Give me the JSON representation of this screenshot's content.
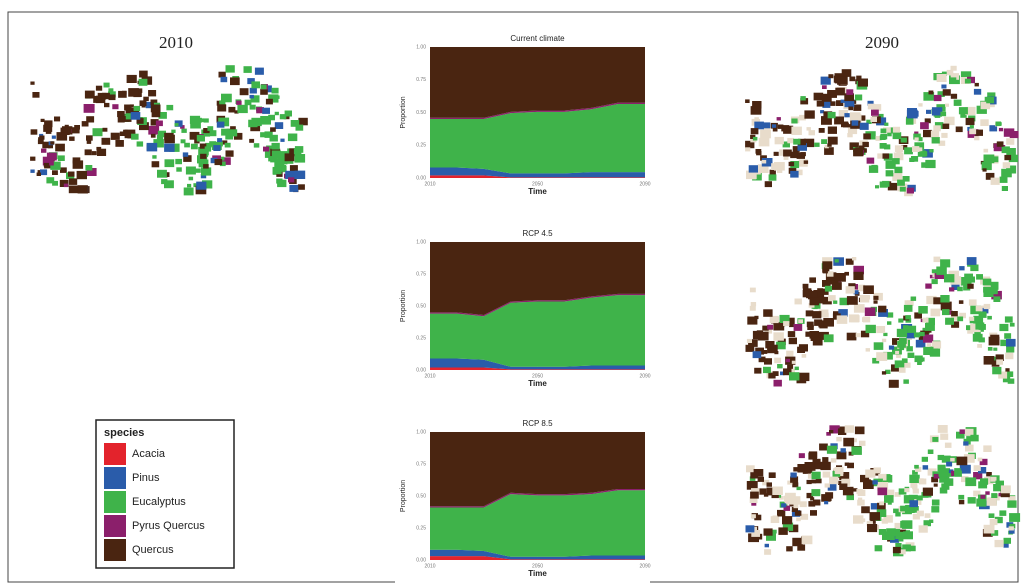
{
  "map_titles": {
    "left": "2010",
    "right": "2090"
  },
  "chart_data": [
    {
      "type": "area",
      "title": "Current climate",
      "x_label": "Time",
      "y_label": "Proportion",
      "legend_title": "species",
      "x": [
        2010,
        2020,
        2030,
        2040,
        2050,
        2060,
        2070,
        2080,
        2090
      ],
      "xlim": [
        2010,
        2090
      ],
      "xticks": [
        2010,
        2050,
        2090
      ],
      "ylim": [
        0,
        1
      ],
      "yticks": [
        {
          "value": 0,
          "label": "0.00"
        },
        {
          "value": 0.25,
          "label": "0.25"
        },
        {
          "value": 0.5,
          "label": "0.50"
        },
        {
          "value": 0.75,
          "label": "0.75"
        },
        {
          "value": 1,
          "label": "1.00"
        }
      ],
      "grid": true,
      "series": [
        {
          "name": "Acacia",
          "color": "#e3232c",
          "values": [
            0.02,
            0.02,
            0.02,
            0.005,
            0.005,
            0.005,
            0.005,
            0.005,
            0.005
          ]
        },
        {
          "name": "Pinus",
          "color": "#2a5caa",
          "values": [
            0.06,
            0.06,
            0.05,
            0.03,
            0.03,
            0.03,
            0.04,
            0.04,
            0.04
          ]
        },
        {
          "name": "Eucalyptus",
          "color": "#3fb34a",
          "values": [
            0.37,
            0.37,
            0.38,
            0.46,
            0.47,
            0.47,
            0.48,
            0.52,
            0.52
          ]
        },
        {
          "name": "Pyrus Quercus",
          "color": "#8b1f6b",
          "values": [
            0.01,
            0.01,
            0.01,
            0.01,
            0.01,
            0.01,
            0.01,
            0.01,
            0.01
          ]
        },
        {
          "name": "Quercus",
          "color": "#4a2511",
          "values": [
            0.54,
            0.54,
            0.54,
            0.495,
            0.485,
            0.485,
            0.465,
            0.425,
            0.425
          ]
        }
      ]
    },
    {
      "type": "area",
      "title": "RCP 4.5",
      "x_label": "Time",
      "y_label": "Proportion",
      "x": [
        2010,
        2020,
        2030,
        2040,
        2050,
        2060,
        2070,
        2080,
        2090
      ],
      "xlim": [
        2010,
        2090
      ],
      "xticks": [
        2010,
        2050,
        2090
      ],
      "ylim": [
        0,
        1
      ],
      "yticks": [
        {
          "value": 0,
          "label": "0.00"
        },
        {
          "value": 0.25,
          "label": "0.25"
        },
        {
          "value": 0.5,
          "label": "0.50"
        },
        {
          "value": 0.75,
          "label": "0.75"
        },
        {
          "value": 1,
          "label": "1.00"
        }
      ],
      "grid": true,
      "series": [
        {
          "name": "Acacia",
          "color": "#e3232c",
          "values": [
            0.02,
            0.02,
            0.02,
            0.005,
            0.005,
            0.005,
            0.005,
            0.005,
            0.005
          ]
        },
        {
          "name": "Pinus",
          "color": "#2a5caa",
          "values": [
            0.07,
            0.07,
            0.06,
            0.02,
            0.02,
            0.02,
            0.03,
            0.03,
            0.03
          ]
        },
        {
          "name": "Eucalyptus",
          "color": "#3fb34a",
          "values": [
            0.35,
            0.35,
            0.34,
            0.5,
            0.51,
            0.51,
            0.53,
            0.55,
            0.55
          ]
        },
        {
          "name": "Pyrus Quercus",
          "color": "#8b1f6b",
          "values": [
            0.01,
            0.01,
            0.01,
            0.01,
            0.01,
            0.01,
            0.01,
            0.01,
            0.01
          ]
        },
        {
          "name": "Quercus",
          "color": "#4a2511",
          "values": [
            0.55,
            0.55,
            0.57,
            0.465,
            0.455,
            0.455,
            0.425,
            0.405,
            0.405
          ]
        }
      ]
    },
    {
      "type": "area",
      "title": "RCP 8.5",
      "x_label": "Time",
      "y_label": "Proportion",
      "x": [
        2010,
        2020,
        2030,
        2040,
        2050,
        2060,
        2070,
        2080,
        2090
      ],
      "xlim": [
        2010,
        2090
      ],
      "xticks": [
        2010,
        2050,
        2090
      ],
      "ylim": [
        0,
        1
      ],
      "yticks": [
        {
          "value": 0,
          "label": "0.00"
        },
        {
          "value": 0.25,
          "label": "0.25"
        },
        {
          "value": 0.5,
          "label": "0.50"
        },
        {
          "value": 0.75,
          "label": "0.75"
        },
        {
          "value": 1,
          "label": "1.00"
        }
      ],
      "grid": true,
      "series": [
        {
          "name": "Acacia",
          "color": "#e3232c",
          "values": [
            0.03,
            0.03,
            0.03,
            0.005,
            0.005,
            0.005,
            0.005,
            0.005,
            0.005
          ]
        },
        {
          "name": "Pinus",
          "color": "#2a5caa",
          "values": [
            0.05,
            0.05,
            0.04,
            0.02,
            0.02,
            0.02,
            0.03,
            0.03,
            0.03
          ]
        },
        {
          "name": "Eucalyptus",
          "color": "#3fb34a",
          "values": [
            0.33,
            0.33,
            0.34,
            0.49,
            0.48,
            0.48,
            0.48,
            0.51,
            0.51
          ]
        },
        {
          "name": "Pyrus Quercus",
          "color": "#8b1f6b",
          "values": [
            0.01,
            0.01,
            0.01,
            0.01,
            0.01,
            0.01,
            0.01,
            0.01,
            0.01
          ]
        },
        {
          "name": "Quercus",
          "color": "#4a2511",
          "values": [
            0.58,
            0.58,
            0.58,
            0.475,
            0.485,
            0.485,
            0.475,
            0.445,
            0.445
          ]
        }
      ]
    }
  ]
}
